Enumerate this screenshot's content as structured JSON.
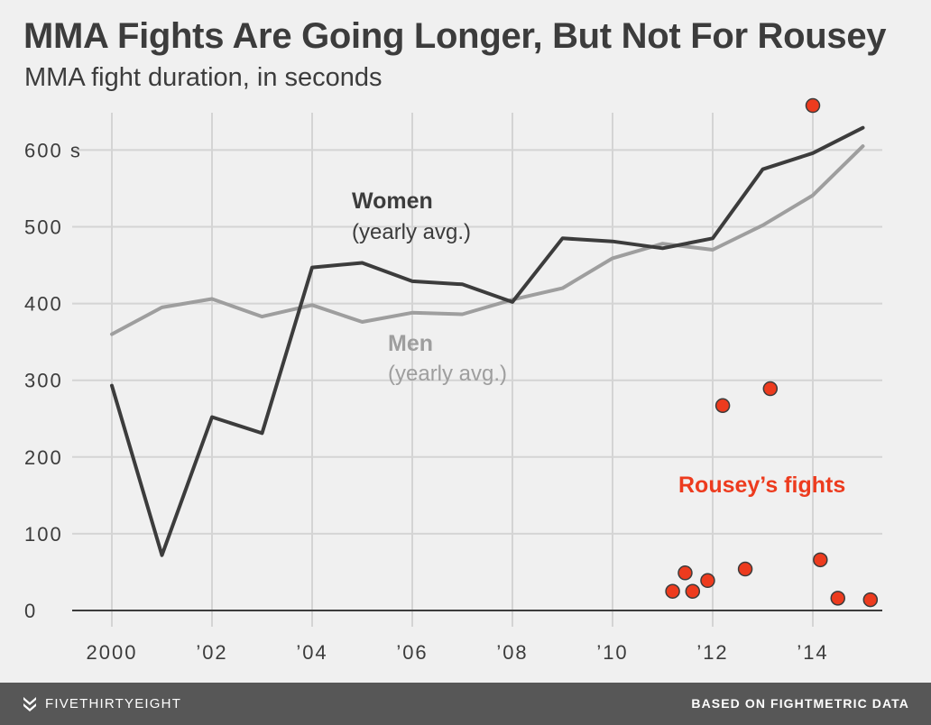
{
  "header": {
    "title": "MMA Fights Are Going Longer, But Not For Rousey",
    "subtitle": "MMA fight duration, in seconds"
  },
  "footer": {
    "brand": "FIVETHIRTYEIGHT",
    "source": "BASED ON FIGHTMETRIC DATA",
    "background": "#575757"
  },
  "chart_data": {
    "type": "line",
    "title": "MMA Fights Are Going Longer, But Not For Rousey",
    "subtitle": "MMA fight duration, in seconds",
    "xlabel": "",
    "ylabel": "",
    "xlim": [
      1999.6,
      2015.9
    ],
    "ylim": [
      0,
      660
    ],
    "x_ticks": [
      {
        "value": 2000,
        "label": "2000"
      },
      {
        "value": 2002,
        "label": "’02"
      },
      {
        "value": 2004,
        "label": "’04"
      },
      {
        "value": 2006,
        "label": "’06"
      },
      {
        "value": 2008,
        "label": "’08"
      },
      {
        "value": 2010,
        "label": "’10"
      },
      {
        "value": 2012,
        "label": "’12"
      },
      {
        "value": 2014,
        "label": "’14"
      }
    ],
    "y_ticks": [
      {
        "value": 0,
        "label": "0"
      },
      {
        "value": 100,
        "label": "100"
      },
      {
        "value": 200,
        "label": "200"
      },
      {
        "value": 300,
        "label": "300"
      },
      {
        "value": 400,
        "label": "400"
      },
      {
        "value": 500,
        "label": "500"
      },
      {
        "value": 600,
        "label": "600 s"
      }
    ],
    "grid": true,
    "series": [
      {
        "name": "Women",
        "note": "(yearly avg.)",
        "color": "#3c3c3c",
        "x": [
          2000,
          2001,
          2002,
          2003,
          2004,
          2005,
          2006,
          2007,
          2008,
          2009,
          2010,
          2011,
          2012,
          2013,
          2014,
          2015
        ],
        "y": [
          293,
          72,
          252,
          231,
          447,
          453,
          429,
          425,
          402,
          485,
          481,
          472,
          485,
          575,
          596,
          629
        ]
      },
      {
        "name": "Men",
        "note": "(yearly avg.)",
        "color": "#9e9e9e",
        "x": [
          2000,
          2001,
          2002,
          2003,
          2004,
          2005,
          2006,
          2007,
          2008,
          2009,
          2010,
          2011,
          2012,
          2013,
          2014,
          2015
        ],
        "y": [
          360,
          395,
          406,
          383,
          398,
          376,
          388,
          386,
          405,
          420,
          459,
          478,
          470,
          502,
          541,
          605
        ]
      }
    ],
    "scatter": {
      "name": "Rousey’s fights",
      "color": "#ed3b1e",
      "points": [
        {
          "x": 2011.2,
          "y": 25
        },
        {
          "x": 2011.45,
          "y": 49
        },
        {
          "x": 2011.6,
          "y": 25
        },
        {
          "x": 2011.9,
          "y": 39
        },
        {
          "x": 2012.2,
          "y": 267
        },
        {
          "x": 2012.65,
          "y": 54
        },
        {
          "x": 2013.15,
          "y": 289
        },
        {
          "x": 2014.0,
          "y": 658
        },
        {
          "x": 2014.15,
          "y": 66
        },
        {
          "x": 2014.5,
          "y": 16
        },
        {
          "x": 2015.15,
          "y": 14
        }
      ]
    }
  }
}
